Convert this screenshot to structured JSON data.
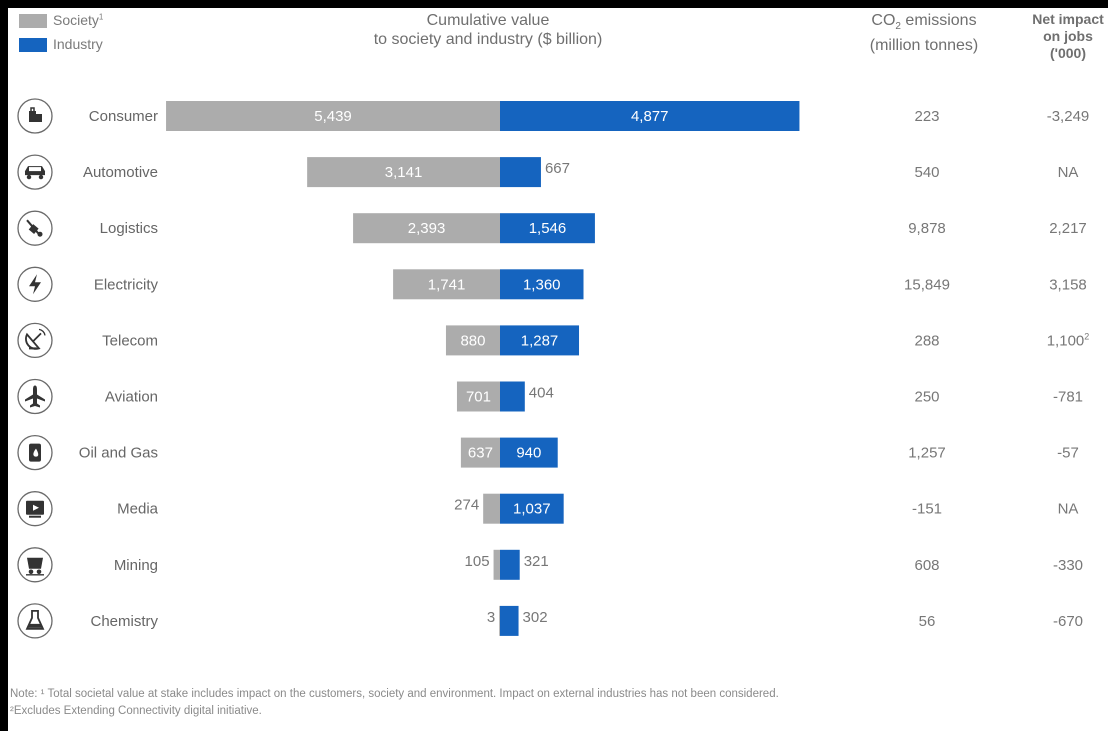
{
  "legend": {
    "society_label": "Society",
    "society_sup": "1",
    "industry_label": "Industry"
  },
  "headers": {
    "value_line1": "Cumulative value",
    "value_line2": "to society and industry ($ billion)",
    "co2_line1_pre": "CO",
    "co2_line1_sub": "2",
    "co2_line1_post": " emissions",
    "co2_line2": "(million tonnes)",
    "jobs_line1": "Net impact",
    "jobs_line2": "on jobs",
    "jobs_line3": "('000)"
  },
  "colors": {
    "society": "#acacac",
    "industry": "#1564bf",
    "icon_stroke": "#333333"
  },
  "chart_data": {
    "type": "bar",
    "orientation": "horizontal-diverging",
    "categories": [
      "Consumer",
      "Automotive",
      "Logistics",
      "Electricity",
      "Telecom",
      "Aviation",
      "Oil and Gas",
      "Media",
      "Mining",
      "Chemistry"
    ],
    "series": [
      {
        "name": "Society",
        "values": [
          5439,
          3141,
          2393,
          1741,
          880,
          701,
          637,
          274,
          105,
          3
        ],
        "labels": [
          "5,439",
          "3,141",
          "2,393",
          "1,741",
          "880",
          "701",
          "637",
          "274",
          "105",
          "3"
        ]
      },
      {
        "name": "Industry",
        "values": [
          4877,
          667,
          1546,
          1360,
          1287,
          404,
          940,
          1037,
          321,
          302
        ],
        "labels": [
          "4,877",
          "667",
          "1,546",
          "1,360",
          "1,287",
          "404",
          "940",
          "1,037",
          "321",
          "302"
        ]
      }
    ],
    "co2_emissions": [
      "223",
      "540",
      "9,878",
      "15,849",
      "288",
      "250",
      "1,257",
      "-151",
      "608",
      "56"
    ],
    "net_jobs": [
      {
        "value": "-3,249",
        "sup": ""
      },
      {
        "value": "NA",
        "sup": ""
      },
      {
        "value": "2,217",
        "sup": ""
      },
      {
        "value": "3,158",
        "sup": ""
      },
      {
        "value": "1,100",
        "sup": "2"
      },
      {
        "value": "-781",
        "sup": ""
      },
      {
        "value": "-57",
        "sup": ""
      },
      {
        "value": "NA",
        "sup": ""
      },
      {
        "value": "-330",
        "sup": ""
      },
      {
        "value": "-670",
        "sup": ""
      }
    ],
    "icons": [
      "shopping-bags-icon",
      "car-icon",
      "hand-truck-icon",
      "lightning-icon",
      "satellite-dish-icon",
      "airplane-icon",
      "oil-barrel-icon",
      "media-player-icon",
      "mine-cart-icon",
      "flask-icon"
    ]
  },
  "note": {
    "line1": "Note: ¹ Total societal value at stake includes impact on the customers, society and environment. Impact on external industries has not been considered.",
    "line2": "²Excludes Extending Connectivity digital initiative."
  }
}
